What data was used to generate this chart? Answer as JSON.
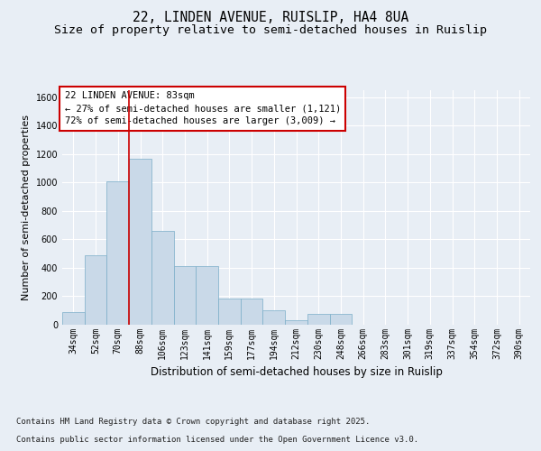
{
  "title": "22, LINDEN AVENUE, RUISLIP, HA4 8UA",
  "subtitle": "Size of property relative to semi-detached houses in Ruislip",
  "xlabel": "Distribution of semi-detached houses by size in Ruislip",
  "ylabel": "Number of semi-detached properties",
  "footer_line1": "Contains HM Land Registry data © Crown copyright and database right 2025.",
  "footer_line2": "Contains public sector information licensed under the Open Government Licence v3.0.",
  "annotation_title": "22 LINDEN AVENUE: 83sqm",
  "annotation_line1": "← 27% of semi-detached houses are smaller (1,121)",
  "annotation_line2": "72% of semi-detached houses are larger (3,009) →",
  "categories": [
    "34sqm",
    "52sqm",
    "70sqm",
    "88sqm",
    "106sqm",
    "123sqm",
    "141sqm",
    "159sqm",
    "177sqm",
    "194sqm",
    "212sqm",
    "230sqm",
    "248sqm",
    "266sqm",
    "283sqm",
    "301sqm",
    "319sqm",
    "337sqm",
    "354sqm",
    "372sqm",
    "390sqm"
  ],
  "values": [
    90,
    490,
    1010,
    1170,
    660,
    415,
    415,
    185,
    185,
    100,
    30,
    75,
    75,
    0,
    0,
    0,
    0,
    0,
    0,
    0,
    0
  ],
  "bar_color": "#c9d9e8",
  "bar_edge_color": "#7aadc8",
  "vline_color": "#cc0000",
  "vline_x": 2.5,
  "ylim": [
    0,
    1650
  ],
  "yticks": [
    0,
    200,
    400,
    600,
    800,
    1000,
    1200,
    1400,
    1600
  ],
  "bg_color": "#e8eef5",
  "plot_bg_color": "#e8eef5",
  "annotation_box_color": "#ffffff",
  "annotation_box_edge": "#cc0000",
  "title_fontsize": 10.5,
  "subtitle_fontsize": 9.5,
  "ylabel_fontsize": 8,
  "xlabel_fontsize": 8.5,
  "tick_fontsize": 7,
  "footer_fontsize": 6.5,
  "annotation_fontsize": 7.5
}
